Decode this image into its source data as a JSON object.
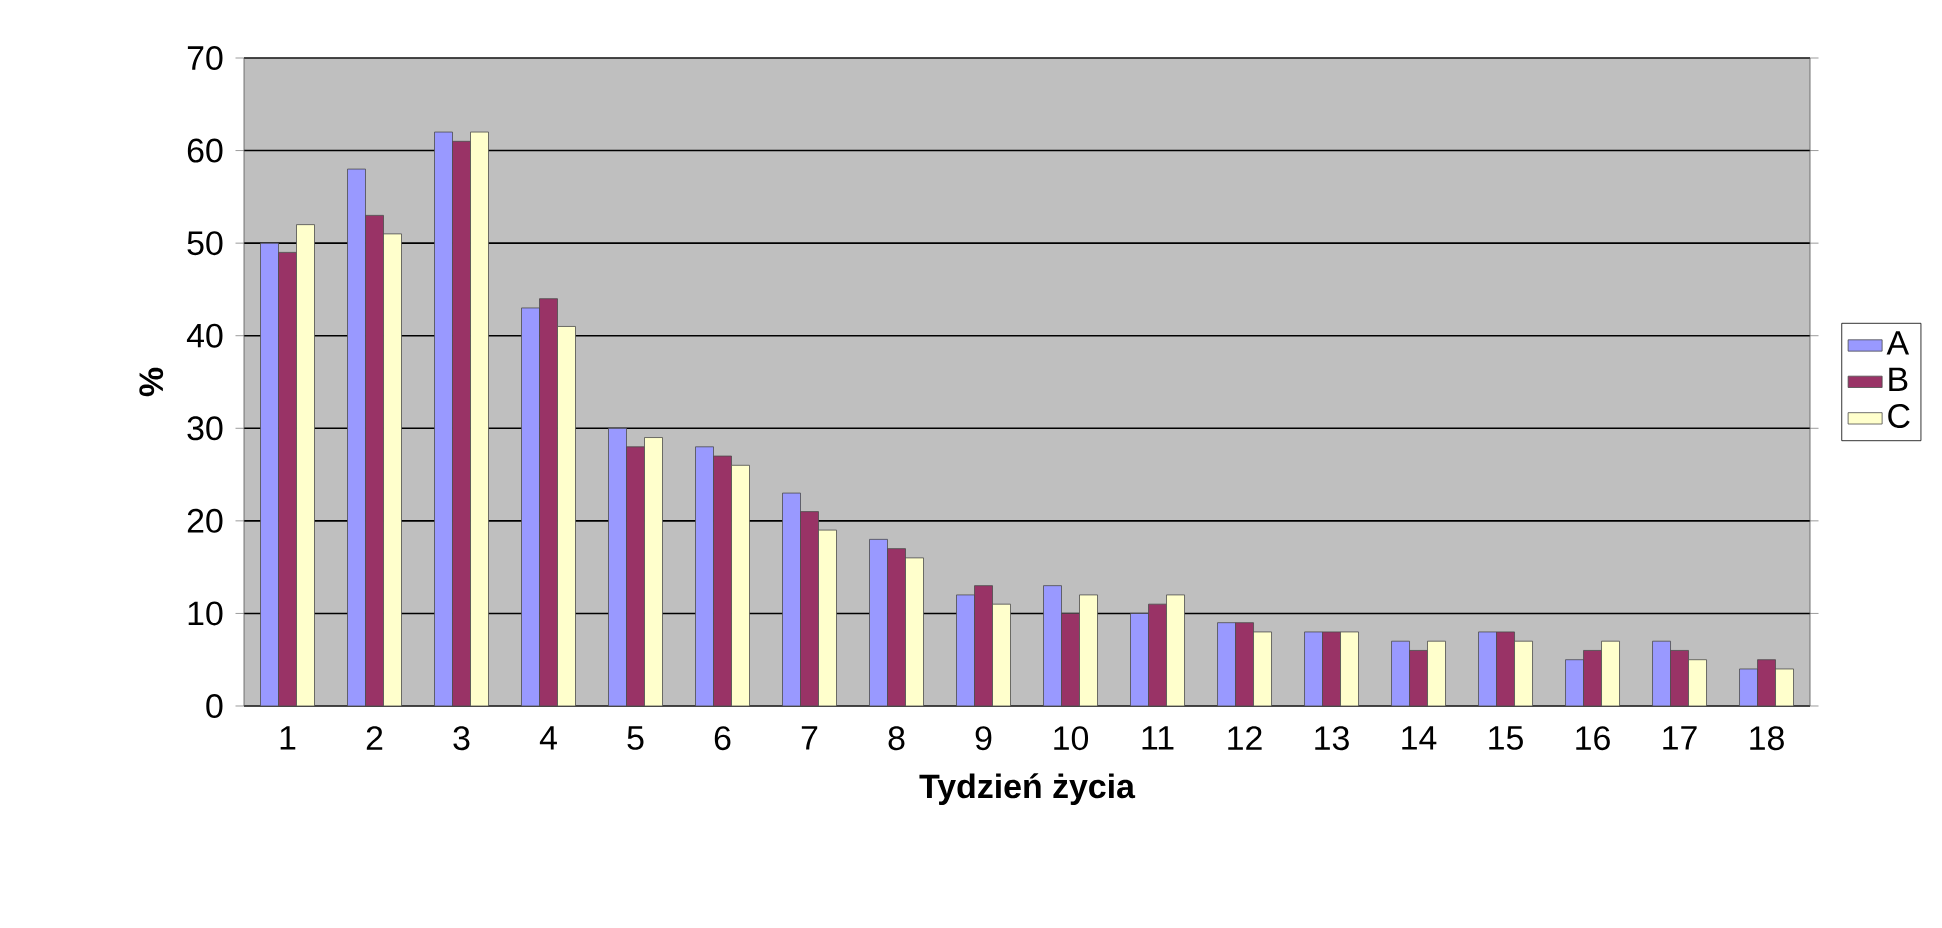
{
  "chart_data": {
    "type": "bar",
    "xlabel": "Tydzień życia",
    "ylabel": "%",
    "categories": [
      "1",
      "2",
      "3",
      "4",
      "5",
      "6",
      "7",
      "8",
      "9",
      "10",
      "11",
      "12",
      "13",
      "14",
      "15",
      "16",
      "17",
      "18"
    ],
    "series": [
      {
        "name": "A",
        "color": "#9999ff",
        "values": [
          50,
          58,
          62,
          43,
          30,
          28,
          23,
          18,
          12,
          13,
          10,
          9,
          8,
          7,
          8,
          5,
          7,
          4
        ]
      },
      {
        "name": "B",
        "color": "#993366",
        "values": [
          49,
          53,
          61,
          44,
          28,
          27,
          21,
          17,
          13,
          10,
          11,
          9,
          8,
          6,
          8,
          6,
          6,
          5
        ]
      },
      {
        "name": "C",
        "color": "#ffffcc",
        "values": [
          52,
          51,
          62,
          41,
          29,
          26,
          19,
          16,
          11,
          12,
          12,
          8,
          8,
          7,
          7,
          7,
          5,
          4
        ]
      }
    ],
    "ylim": [
      0,
      70
    ],
    "yticks": [
      0,
      10,
      20,
      30,
      40,
      50,
      60,
      70
    ],
    "grid": "y",
    "legend": "right"
  }
}
